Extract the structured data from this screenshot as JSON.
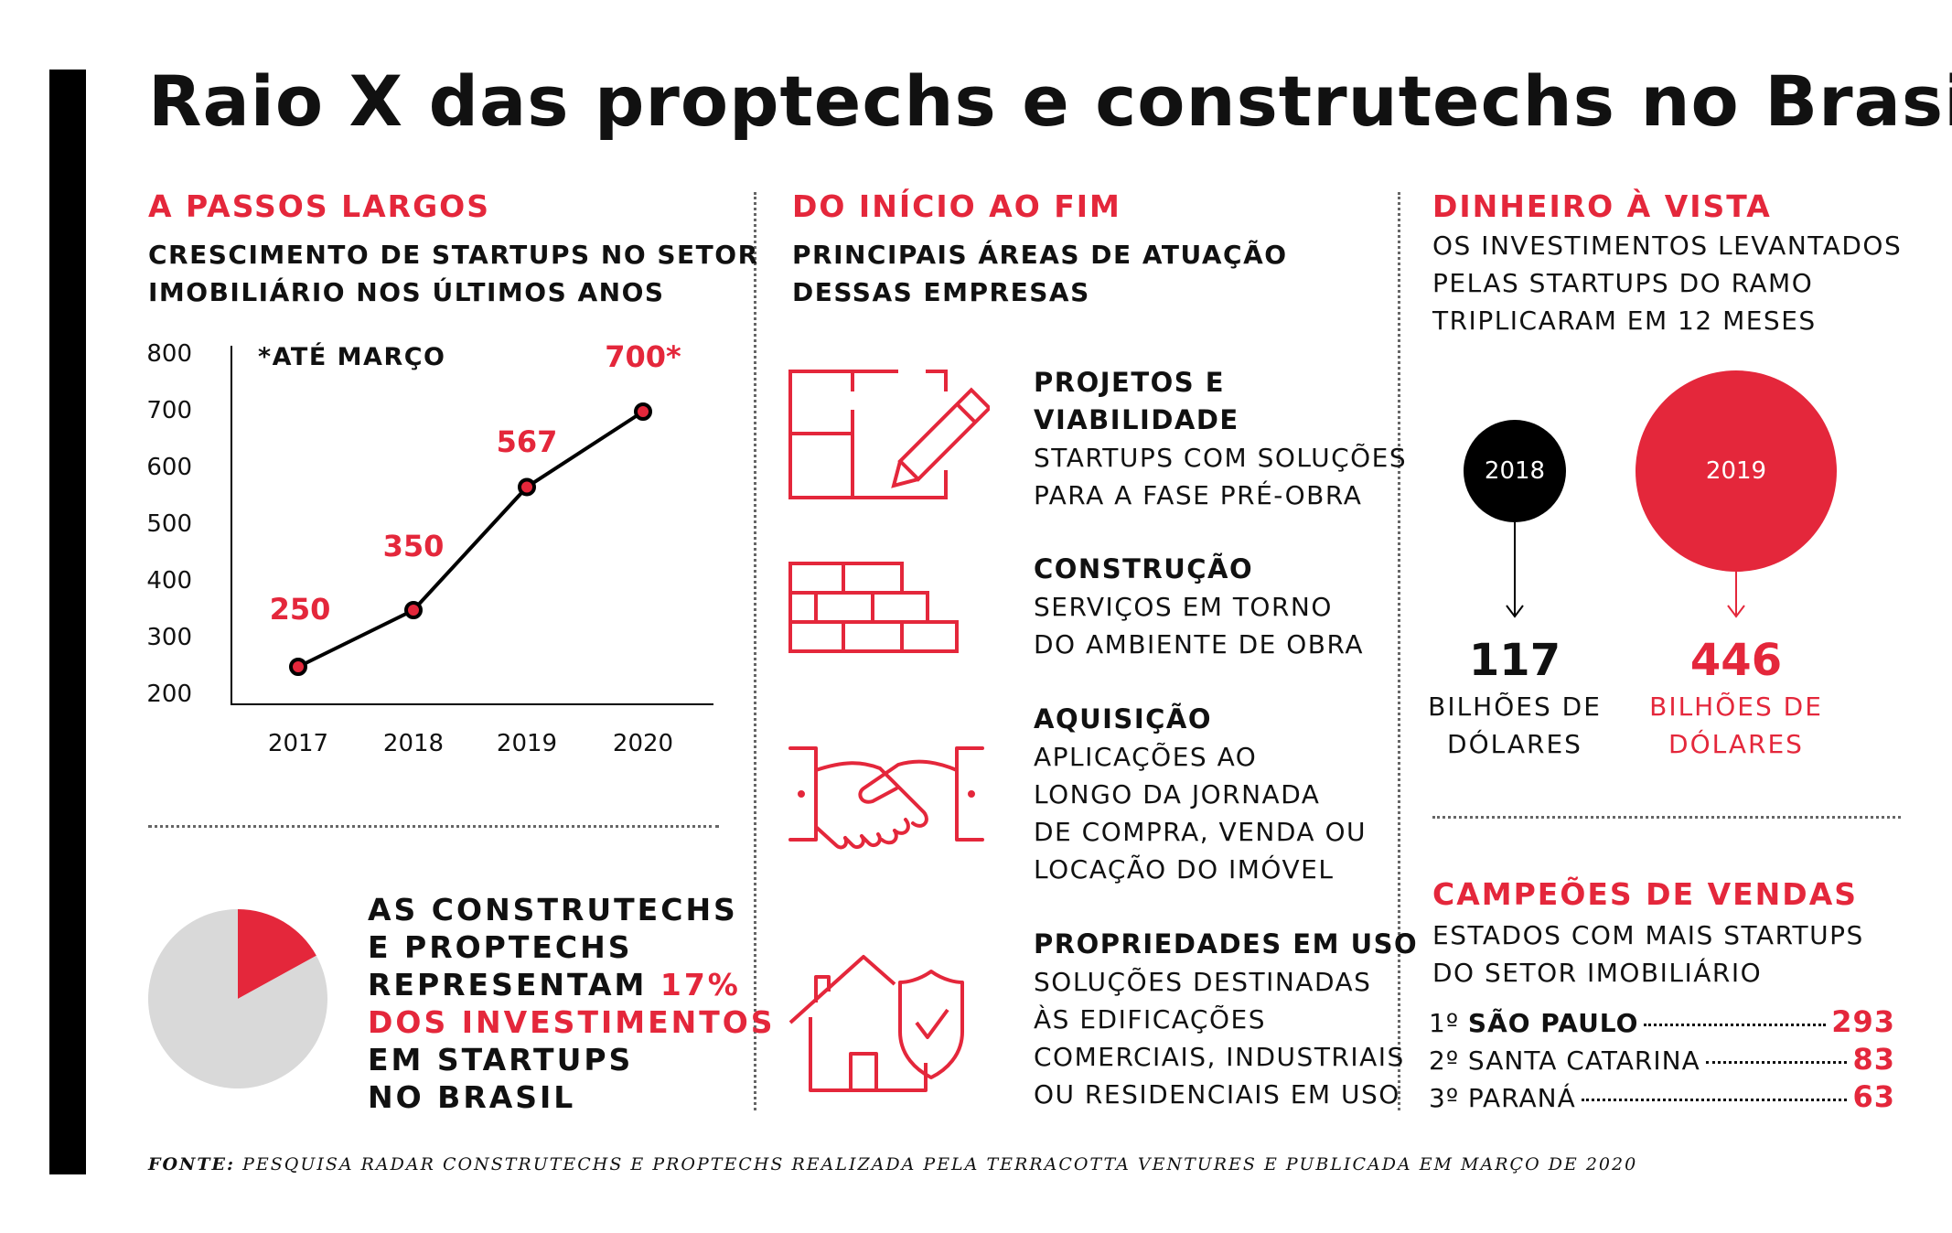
{
  "title": "Raio X das proptechs e construtechs no Brasil",
  "colors": {
    "accent": "#e4273b",
    "dark": "#000000",
    "pie_rest": "#d9d9d9"
  },
  "col1": {
    "kicker": "A PASSOS LARGOS",
    "subtitle_line1": "CRESCIMENTO DE STARTUPS NO SETOR",
    "subtitle_line2": "IMOBILIÁRIO NOS ÚLTIMOS ANOS",
    "note": "*ATÉ MARÇO"
  },
  "chart_data": [
    {
      "type": "line",
      "x": [
        "2017",
        "2018",
        "2019",
        "2020"
      ],
      "values": [
        250,
        350,
        567,
        700
      ],
      "data_labels": [
        "250",
        "350",
        "567",
        "700*"
      ],
      "y_ticks": [
        "800",
        "700",
        "600",
        "500",
        "400",
        "300",
        "200"
      ],
      "ylim": [
        200,
        800
      ],
      "note": "*ATÉ MARÇO"
    },
    {
      "type": "pie",
      "slices": [
        {
          "label": "AS CONSTRUTECHS E PROPTECHS",
          "value": 17,
          "color": "#e4273b"
        },
        {
          "label": "",
          "value": 83,
          "color": "#d9d9d9"
        }
      ]
    },
    {
      "type": "bubble",
      "items": [
        {
          "year": "2018",
          "value": 117,
          "unit": "BILHÕES DE DÓLARES",
          "color": "#000000"
        },
        {
          "year": "2019",
          "value": 446,
          "unit": "BILHÕES DE DÓLARES",
          "color": "#e4273b"
        }
      ]
    }
  ],
  "pie_text": {
    "l1": "AS CONSTRUTECHS",
    "l2": "E PROPTECHS",
    "l3": "REPRESENTAM",
    "l3_red": "17%",
    "l4": "DOS INVESTIMENTOS",
    "l5": "EM STARTUPS",
    "l6": "NO BRASIL"
  },
  "col2": {
    "kicker": "DO INÍCIO AO FIM",
    "subtitle_line1": "PRINCIPAIS ÁREAS DE ATUAÇÃO",
    "subtitle_line2": "DESSAS EMPRESAS",
    "areas": [
      {
        "icon": "floorplan-pencil-icon",
        "title": [
          "PROJETOS E",
          "VIABILIDADE"
        ],
        "desc": [
          "STARTUPS COM SOLUÇÕES",
          "PARA A FASE PRÉ-OBRA"
        ]
      },
      {
        "icon": "brick-wall-icon",
        "title": [
          "CONSTRUÇÃO"
        ],
        "desc": [
          "SERVIÇOS EM TORNO",
          "DO AMBIENTE DE OBRA"
        ]
      },
      {
        "icon": "handshake-icon",
        "title": [
          "AQUISIÇÃO"
        ],
        "desc": [
          "APLICAÇÕES AO",
          "LONGO DA JORNADA",
          "DE COMPRA, VENDA OU",
          "LOCAÇÃO DO IMÓVEL"
        ]
      },
      {
        "icon": "house-shield-icon",
        "title": [
          "PROPRIEDADES EM USO"
        ],
        "desc": [
          "SOLUÇÕES DESTINADAS",
          "ÀS EDIFICAÇÕES",
          "COMERCIAIS, INDUSTRIAIS",
          "OU RESIDENCIAIS EM USO"
        ]
      }
    ]
  },
  "col3": {
    "kicker": "DINHEIRO À VISTA",
    "desc_line1": "OS INVESTIMENTOS LEVANTADOS",
    "desc_line2": "PELAS STARTUPS DO RAMO",
    "desc_line3": "TRIPLICARAM EM 12 MESES",
    "bubble1": {
      "year": "2018",
      "value": "117",
      "unit_line1": "BILHÕES DE",
      "unit_line2": "DÓLARES"
    },
    "bubble2": {
      "year": "2019",
      "value": "446",
      "unit_line1": "BILHÕES DE",
      "unit_line2": "DÓLARES"
    },
    "kicker2": "CAMPEÕES DE VENDAS",
    "desc2_line1": "ESTADOS COM MAIS STARTUPS",
    "desc2_line2": "DO SETOR IMOBILIÁRIO",
    "ranking": [
      {
        "pos": "1º",
        "state": "SÃO PAULO",
        "value": "293"
      },
      {
        "pos": "2º",
        "state": "SANTA CATARINA",
        "value": "83"
      },
      {
        "pos": "3º",
        "state": "PARANÁ",
        "value": "63"
      }
    ]
  },
  "source": {
    "label": "FONTE:",
    "text": " PESQUISA RADAR CONSTRUTECHS E PROPTECHS REALIZADA PELA TERRACOTTA VENTURES E PUBLICADA EM MARÇO DE 2020"
  }
}
